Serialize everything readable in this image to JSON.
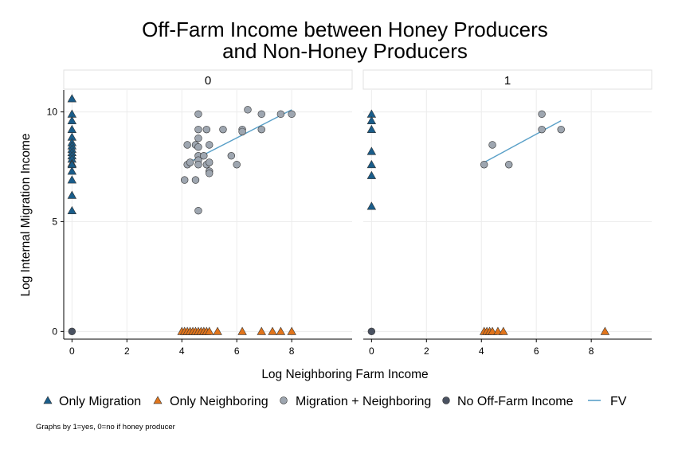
{
  "chart_data": {
    "type": "scatter",
    "title_lines": [
      "Off-Farm Income between Honey Producers",
      "and Non-Honey Producers"
    ],
    "xlabel": "Log Neighboring Farm Income",
    "ylabel": "Log Internal Migration Income",
    "xlim": [
      -0.3,
      10.2
    ],
    "ylim": [
      -0.35,
      11.0
    ],
    "x_ticks": [
      0,
      2,
      4,
      6,
      8
    ],
    "y_ticks": [
      0,
      5,
      10
    ],
    "grid": true,
    "note": "Graphs by 1=yes, 0=no if honey producer",
    "legend_position": "bottom",
    "legend": [
      {
        "label": "Only Migration",
        "marker": "triangle",
        "color": "#1a5d8a"
      },
      {
        "label": "Only Neighboring",
        "marker": "triangle",
        "color": "#e0741b"
      },
      {
        "label": "Migration + Neighboring",
        "marker": "circle",
        "color": "#9ea6b0"
      },
      {
        "label": "No Off-Farm Income",
        "marker": "circle",
        "color": "#4a5261"
      },
      {
        "label": "FV",
        "marker": "line",
        "color": "#5aa0c8"
      }
    ],
    "panels": [
      {
        "label": "0",
        "only_migration_y": [
          10.6,
          9.9,
          9.6,
          9.2,
          8.85,
          8.6,
          8.45,
          8.3,
          8.15,
          8.0,
          7.85,
          7.65,
          7.6,
          7.3,
          6.9,
          6.2,
          5.5
        ],
        "only_neighboring_x": [
          4.0,
          4.1,
          4.2,
          4.3,
          4.4,
          4.5,
          4.6,
          4.7,
          4.8,
          4.9,
          5.0,
          5.3,
          6.2,
          6.9,
          7.3,
          7.6,
          8.0
        ],
        "both_points": [
          {
            "x": 4.1,
            "y": 6.9
          },
          {
            "x": 4.2,
            "y": 8.5
          },
          {
            "x": 4.2,
            "y": 7.6
          },
          {
            "x": 4.3,
            "y": 7.7
          },
          {
            "x": 4.5,
            "y": 6.9
          },
          {
            "x": 4.5,
            "y": 8.5
          },
          {
            "x": 4.6,
            "y": 9.9
          },
          {
            "x": 4.6,
            "y": 9.2
          },
          {
            "x": 4.6,
            "y": 8.8
          },
          {
            "x": 4.6,
            "y": 8.4
          },
          {
            "x": 4.6,
            "y": 8.0
          },
          {
            "x": 4.6,
            "y": 7.8
          },
          {
            "x": 4.6,
            "y": 7.6
          },
          {
            "x": 4.6,
            "y": 5.5
          },
          {
            "x": 4.8,
            "y": 8.0
          },
          {
            "x": 4.9,
            "y": 9.2
          },
          {
            "x": 4.9,
            "y": 7.6
          },
          {
            "x": 5.0,
            "y": 8.5
          },
          {
            "x": 5.0,
            "y": 7.7
          },
          {
            "x": 5.0,
            "y": 7.3
          },
          {
            "x": 5.0,
            "y": 7.2
          },
          {
            "x": 5.5,
            "y": 9.2
          },
          {
            "x": 5.8,
            "y": 8.0
          },
          {
            "x": 6.0,
            "y": 7.6
          },
          {
            "x": 6.2,
            "y": 9.2
          },
          {
            "x": 6.2,
            "y": 9.1
          },
          {
            "x": 6.4,
            "y": 10.1
          },
          {
            "x": 6.9,
            "y": 9.9
          },
          {
            "x": 6.9,
            "y": 9.2
          },
          {
            "x": 7.6,
            "y": 9.9
          },
          {
            "x": 8.0,
            "y": 9.9
          }
        ],
        "none_count_label": 0,
        "fv": [
          {
            "x": 4.1,
            "y": 7.6
          },
          {
            "x": 8.0,
            "y": 10.1
          }
        ]
      },
      {
        "label": "1",
        "only_migration_y": [
          9.9,
          9.6,
          9.2,
          8.2,
          7.6,
          7.1,
          5.7
        ],
        "only_neighboring_x": [
          4.1,
          4.2,
          4.3,
          4.4,
          4.6,
          4.8,
          8.5
        ],
        "both_points": [
          {
            "x": 4.1,
            "y": 7.6
          },
          {
            "x": 4.4,
            "y": 8.5
          },
          {
            "x": 5.0,
            "y": 7.6
          },
          {
            "x": 6.2,
            "y": 9.9
          },
          {
            "x": 6.2,
            "y": 9.2
          },
          {
            "x": 6.9,
            "y": 9.2
          }
        ],
        "none_count_label": 0,
        "fv": [
          {
            "x": 4.1,
            "y": 7.7
          },
          {
            "x": 6.9,
            "y": 9.6
          }
        ]
      }
    ]
  }
}
